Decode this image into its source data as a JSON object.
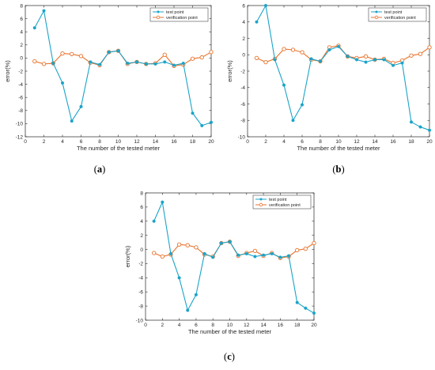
{
  "colors": {
    "test": "#1aa4c8",
    "verification": "#e8722a",
    "axis": "#262626"
  },
  "chart_data": [
    {
      "id": "a",
      "type": "line",
      "caption": {
        "open": "(",
        "letter": "a",
        "close": ")"
      },
      "xlabel": "The number of the tested meter",
      "ylabel": "error(%)",
      "xlim": [
        0,
        20
      ],
      "ylim": [
        -12,
        8
      ],
      "xticks": [
        0,
        2,
        4,
        6,
        8,
        10,
        12,
        14,
        16,
        18,
        20
      ],
      "yticks": [
        -12,
        -10,
        -8,
        -6,
        -4,
        -2,
        0,
        2,
        4,
        6,
        8
      ],
      "legend_position": "top-right",
      "x": [
        1,
        2,
        3,
        4,
        5,
        6,
        7,
        8,
        9,
        10,
        11,
        12,
        13,
        14,
        15,
        16,
        17,
        18,
        19,
        20
      ],
      "series": [
        {
          "name": "test point",
          "marker": "filled-circle",
          "values": [
            4.6,
            7.2,
            -0.8,
            -3.8,
            -9.6,
            -7.4,
            -0.6,
            -1.0,
            0.9,
            1.1,
            -0.8,
            -0.6,
            -0.9,
            -0.9,
            -0.6,
            -1.1,
            -0.8,
            -8.4,
            -10.3,
            -9.8
          ]
        },
        {
          "name": "verification point",
          "marker": "open-circle",
          "values": [
            -0.5,
            -0.9,
            -0.8,
            0.7,
            0.6,
            0.3,
            -0.7,
            -1.1,
            0.9,
            1.1,
            -0.9,
            -0.6,
            -0.9,
            -0.8,
            0.5,
            -1.2,
            -1.0,
            -0.1,
            0.1,
            0.9
          ]
        }
      ]
    },
    {
      "id": "b",
      "type": "line",
      "caption": {
        "open": "(",
        "letter": "b",
        "close": ")"
      },
      "xlabel": "The number of the tested meter",
      "ylabel": "error(%)",
      "xlim": [
        0,
        20
      ],
      "ylim": [
        -10,
        6
      ],
      "xticks": [
        0,
        2,
        4,
        6,
        8,
        10,
        12,
        14,
        16,
        18,
        20
      ],
      "yticks": [
        -10,
        -8,
        -6,
        -4,
        -2,
        0,
        2,
        4,
        6
      ],
      "legend_position": "top-right",
      "x": [
        1,
        2,
        3,
        4,
        5,
        6,
        7,
        8,
        9,
        10,
        11,
        12,
        13,
        14,
        15,
        16,
        17,
        18,
        19,
        20
      ],
      "series": [
        {
          "name": "test point",
          "marker": "filled-circle",
          "values": [
            4.0,
            6.0,
            -0.6,
            -3.7,
            -8.0,
            -6.1,
            -0.5,
            -0.8,
            0.6,
            1.0,
            -0.2,
            -0.6,
            -0.9,
            -0.6,
            -0.6,
            -1.3,
            -1.0,
            -8.2,
            -8.8,
            -9.2
          ]
        },
        {
          "name": "verification point",
          "marker": "open-circle",
          "values": [
            -0.4,
            -0.9,
            -0.5,
            0.7,
            0.6,
            0.3,
            -0.6,
            -0.8,
            0.9,
            1.1,
            -0.2,
            -0.4,
            -0.2,
            -0.6,
            -0.5,
            -1.0,
            -0.7,
            -0.1,
            0.1,
            0.9
          ]
        }
      ]
    },
    {
      "id": "c",
      "type": "line",
      "caption": {
        "open": "(",
        "letter": "c",
        "close": ")"
      },
      "xlabel": "The number of the tested meter",
      "ylabel": "error(%)",
      "xlim": [
        0,
        20
      ],
      "ylim": [
        -10,
        8
      ],
      "xticks": [
        0,
        2,
        4,
        6,
        8,
        10,
        12,
        14,
        16,
        18,
        20
      ],
      "yticks": [
        -10,
        -8,
        -6,
        -4,
        -2,
        0,
        2,
        4,
        6,
        8
      ],
      "legend_position": "top-right",
      "x": [
        1,
        2,
        3,
        4,
        5,
        6,
        7,
        8,
        9,
        10,
        11,
        12,
        13,
        14,
        15,
        16,
        17,
        18,
        19,
        20
      ],
      "series": [
        {
          "name": "test point",
          "marker": "filled-circle",
          "values": [
            4.0,
            6.7,
            -0.6,
            -4.0,
            -8.6,
            -6.4,
            -0.6,
            -1.1,
            0.9,
            1.1,
            -0.8,
            -0.6,
            -1.0,
            -0.8,
            -0.6,
            -1.1,
            -0.9,
            -7.5,
            -8.3,
            -9.0
          ]
        },
        {
          "name": "verification point",
          "marker": "open-circle",
          "values": [
            -0.5,
            -1.0,
            -0.7,
            0.7,
            0.6,
            0.3,
            -0.7,
            -1.0,
            0.9,
            1.1,
            -0.9,
            -0.5,
            -0.2,
            -0.9,
            -0.5,
            -1.2,
            -1.0,
            -0.1,
            0.1,
            0.9
          ]
        }
      ]
    }
  ]
}
